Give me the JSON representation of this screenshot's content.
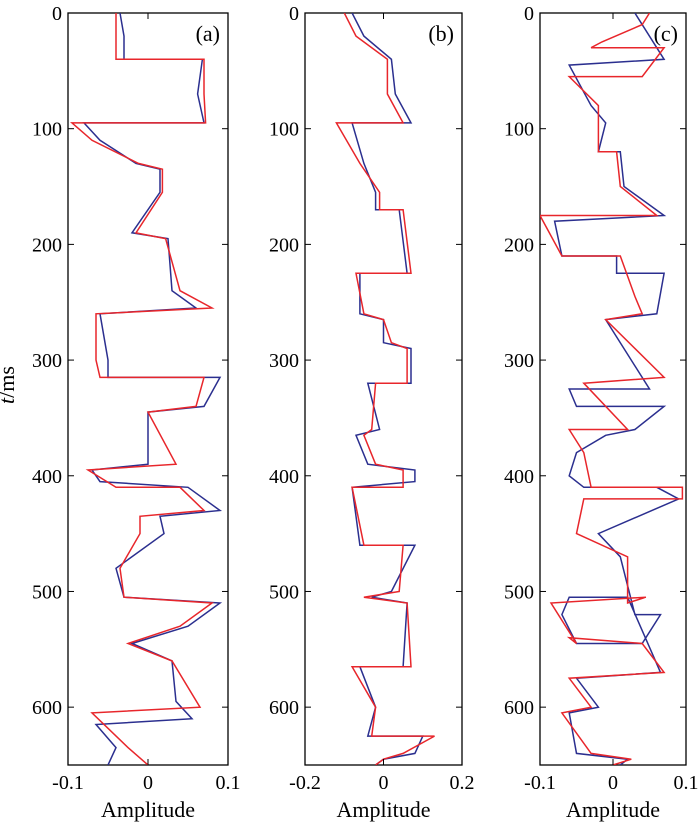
{
  "colors": {
    "blue": "#2b2f8f",
    "red": "#e8262b"
  },
  "y_axis": {
    "label_italic": "t",
    "label_rest": "/ms",
    "ylim": [
      0,
      650
    ],
    "ticks": [
      0,
      100,
      200,
      300,
      400,
      500,
      600
    ]
  },
  "chart_data": [
    {
      "type": "line",
      "panel_label": "(a)",
      "xlabel": "Amplitude",
      "xlim": [
        -0.1,
        0.1
      ],
      "xticks": [
        -0.1,
        0,
        0.1
      ],
      "xtick_labels": [
        "-0.1",
        "0",
        "0.1"
      ],
      "series": [
        {
          "color": "blue",
          "points": [
            [
              -0.035,
              0
            ],
            [
              -0.03,
              20
            ],
            [
              -0.03,
              40
            ],
            [
              0.068,
              40
            ],
            [
              0.062,
              70
            ],
            [
              0.07,
              95
            ],
            [
              -0.08,
              95
            ],
            [
              -0.06,
              110
            ],
            [
              -0.015,
              130
            ],
            [
              0.015,
              135
            ],
            [
              0.015,
              155
            ],
            [
              -0.02,
              190
            ],
            [
              0.025,
              195
            ],
            [
              0.03,
              240
            ],
            [
              0.06,
              255
            ],
            [
              -0.06,
              260
            ],
            [
              -0.05,
              300
            ],
            [
              -0.05,
              315
            ],
            [
              0.09,
              315
            ],
            [
              0.07,
              340
            ],
            [
              0.0,
              345
            ],
            [
              0.0,
              390
            ],
            [
              -0.07,
              395
            ],
            [
              -0.06,
              405
            ],
            [
              0.05,
              410
            ],
            [
              0.09,
              430
            ],
            [
              0.015,
              435
            ],
            [
              0.02,
              450
            ],
            [
              -0.04,
              480
            ],
            [
              -0.03,
              505
            ],
            [
              0.09,
              510
            ],
            [
              0.05,
              530
            ],
            [
              -0.02,
              545
            ],
            [
              0.03,
              560
            ],
            [
              0.035,
              595
            ],
            [
              0.055,
              610
            ],
            [
              -0.065,
              615
            ],
            [
              -0.04,
              635
            ],
            [
              -0.05,
              650
            ]
          ]
        },
        {
          "color": "red",
          "points": [
            [
              -0.04,
              0
            ],
            [
              -0.04,
              20
            ],
            [
              -0.04,
              40
            ],
            [
              0.07,
              40
            ],
            [
              0.07,
              70
            ],
            [
              0.072,
              95
            ],
            [
              -0.095,
              95
            ],
            [
              -0.07,
              110
            ],
            [
              -0.012,
              130
            ],
            [
              0.018,
              135
            ],
            [
              0.018,
              155
            ],
            [
              -0.015,
              190
            ],
            [
              0.022,
              195
            ],
            [
              0.04,
              240
            ],
            [
              0.08,
              255
            ],
            [
              -0.065,
              260
            ],
            [
              -0.065,
              300
            ],
            [
              -0.06,
              315
            ],
            [
              0.07,
              315
            ],
            [
              0.06,
              340
            ],
            [
              0.0,
              345
            ],
            [
              0.035,
              390
            ],
            [
              -0.075,
              395
            ],
            [
              -0.04,
              410
            ],
            [
              0.04,
              410
            ],
            [
              0.07,
              430
            ],
            [
              -0.01,
              435
            ],
            [
              -0.01,
              450
            ],
            [
              -0.035,
              480
            ],
            [
              -0.03,
              505
            ],
            [
              0.08,
              510
            ],
            [
              0.04,
              530
            ],
            [
              -0.025,
              545
            ],
            [
              0.03,
              560
            ],
            [
              0.065,
              600
            ],
            [
              -0.07,
              605
            ],
            [
              -0.025,
              635
            ],
            [
              0.0,
              650
            ]
          ]
        }
      ]
    },
    {
      "type": "line",
      "panel_label": "(b)",
      "xlabel": "Amplitude",
      "xlim": [
        -0.2,
        0.2
      ],
      "xticks": [
        -0.2,
        0,
        0.2
      ],
      "xtick_labels": [
        "-0.2",
        "0",
        "0.2"
      ],
      "series": [
        {
          "color": "blue",
          "points": [
            [
              -0.08,
              0
            ],
            [
              -0.05,
              20
            ],
            [
              0.02,
              40
            ],
            [
              0.03,
              70
            ],
            [
              0.07,
              95
            ],
            [
              -0.08,
              95
            ],
            [
              -0.05,
              130
            ],
            [
              -0.02,
              155
            ],
            [
              -0.02,
              170
            ],
            [
              0.04,
              170
            ],
            [
              0.06,
              225
            ],
            [
              -0.06,
              225
            ],
            [
              -0.06,
              260
            ],
            [
              0.0,
              265
            ],
            [
              0.0,
              285
            ],
            [
              0.07,
              290
            ],
            [
              0.07,
              320
            ],
            [
              -0.04,
              320
            ],
            [
              -0.01,
              360
            ],
            [
              -0.07,
              365
            ],
            [
              -0.04,
              390
            ],
            [
              0.08,
              395
            ],
            [
              0.08,
              405
            ],
            [
              -0.08,
              410
            ],
            [
              -0.06,
              460
            ],
            [
              0.08,
              460
            ],
            [
              0.02,
              500
            ],
            [
              -0.03,
              505
            ],
            [
              0.06,
              510
            ],
            [
              0.05,
              565
            ],
            [
              -0.06,
              565
            ],
            [
              -0.02,
              600
            ],
            [
              -0.04,
              625
            ],
            [
              0.1,
              625
            ],
            [
              0.08,
              640
            ],
            [
              0.0,
              645
            ],
            [
              -0.02,
              650
            ]
          ]
        },
        {
          "color": "red",
          "points": [
            [
              -0.1,
              0
            ],
            [
              -0.07,
              20
            ],
            [
              0.01,
              40
            ],
            [
              0.01,
              70
            ],
            [
              0.05,
              95
            ],
            [
              -0.12,
              95
            ],
            [
              -0.06,
              130
            ],
            [
              -0.01,
              155
            ],
            [
              -0.01,
              170
            ],
            [
              0.05,
              170
            ],
            [
              0.07,
              225
            ],
            [
              -0.07,
              225
            ],
            [
              -0.05,
              260
            ],
            [
              0.0,
              265
            ],
            [
              0.02,
              285
            ],
            [
              0.06,
              290
            ],
            [
              0.06,
              320
            ],
            [
              -0.02,
              320
            ],
            [
              -0.03,
              360
            ],
            [
              -0.05,
              365
            ],
            [
              -0.02,
              390
            ],
            [
              0.05,
              395
            ],
            [
              0.05,
              410
            ],
            [
              -0.08,
              410
            ],
            [
              -0.05,
              460
            ],
            [
              0.05,
              460
            ],
            [
              0.04,
              500
            ],
            [
              -0.05,
              505
            ],
            [
              0.06,
              510
            ],
            [
              0.07,
              565
            ],
            [
              -0.08,
              565
            ],
            [
              -0.02,
              600
            ],
            [
              -0.03,
              625
            ],
            [
              0.13,
              625
            ],
            [
              0.05,
              640
            ],
            [
              0.0,
              645
            ],
            [
              -0.02,
              650
            ]
          ]
        }
      ]
    },
    {
      "type": "line",
      "panel_label": "(c)",
      "xlabel": "Amplitude",
      "xlim": [
        -0.1,
        0.1
      ],
      "xticks": [
        -0.1,
        0,
        0.1
      ],
      "xtick_labels": [
        "-0.1",
        "0",
        "0.1"
      ],
      "series": [
        {
          "color": "blue",
          "points": [
            [
              0.03,
              0
            ],
            [
              0.07,
              40
            ],
            [
              -0.06,
              45
            ],
            [
              -0.03,
              80
            ],
            [
              -0.01,
              95
            ],
            [
              -0.02,
              120
            ],
            [
              0.01,
              120
            ],
            [
              0.015,
              150
            ],
            [
              0.07,
              175
            ],
            [
              -0.08,
              180
            ],
            [
              -0.07,
              210
            ],
            [
              0.005,
              210
            ],
            [
              0.005,
              225
            ],
            [
              0.07,
              225
            ],
            [
              0.06,
              260
            ],
            [
              -0.01,
              265
            ],
            [
              0.05,
              325
            ],
            [
              -0.06,
              325
            ],
            [
              -0.05,
              340
            ],
            [
              0.07,
              340
            ],
            [
              0.03,
              360
            ],
            [
              -0.01,
              365
            ],
            [
              -0.05,
              380
            ],
            [
              -0.06,
              400
            ],
            [
              -0.04,
              410
            ],
            [
              0.06,
              410
            ],
            [
              0.09,
              420
            ],
            [
              -0.02,
              450
            ],
            [
              0.01,
              470
            ],
            [
              0.03,
              520
            ],
            [
              0.065,
              520
            ],
            [
              0.04,
              545
            ],
            [
              -0.05,
              545
            ],
            [
              -0.07,
              520
            ],
            [
              -0.06,
              505
            ],
            [
              0.02,
              505
            ],
            [
              0.065,
              570
            ],
            [
              -0.05,
              575
            ],
            [
              -0.02,
              600
            ],
            [
              -0.06,
              605
            ],
            [
              -0.05,
              640
            ],
            [
              0.02,
              645
            ],
            [
              0.01,
              650
            ]
          ]
        },
        {
          "color": "red",
          "points": [
            [
              0.05,
              0
            ],
            [
              0.04,
              10
            ],
            [
              -0.015,
              25
            ],
            [
              -0.03,
              30
            ],
            [
              0.07,
              30
            ],
            [
              0.04,
              55
            ],
            [
              -0.06,
              55
            ],
            [
              -0.02,
              80
            ],
            [
              -0.02,
              95
            ],
            [
              -0.02,
              120
            ],
            [
              0.005,
              120
            ],
            [
              0.01,
              150
            ],
            [
              0.06,
              175
            ],
            [
              -0.1,
              175
            ],
            [
              -0.07,
              210
            ],
            [
              0.01,
              210
            ],
            [
              0.03,
              245
            ],
            [
              0.04,
              260
            ],
            [
              -0.01,
              265
            ],
            [
              0.07,
              315
            ],
            [
              -0.04,
              320
            ],
            [
              0.02,
              360
            ],
            [
              -0.06,
              360
            ],
            [
              -0.04,
              380
            ],
            [
              -0.03,
              410
            ],
            [
              0.095,
              410
            ],
            [
              0.095,
              420
            ],
            [
              -0.04,
              420
            ],
            [
              -0.05,
              450
            ],
            [
              0.02,
              470
            ],
            [
              0.02,
              510
            ],
            [
              0.045,
              505
            ],
            [
              -0.085,
              510
            ],
            [
              -0.05,
              545
            ],
            [
              -0.06,
              540
            ],
            [
              0.04,
              545
            ],
            [
              0.07,
              570
            ],
            [
              -0.06,
              575
            ],
            [
              -0.03,
              600
            ],
            [
              -0.07,
              605
            ],
            [
              -0.03,
              640
            ],
            [
              0.025,
              645
            ],
            [
              0.0,
              650
            ]
          ]
        }
      ]
    }
  ]
}
